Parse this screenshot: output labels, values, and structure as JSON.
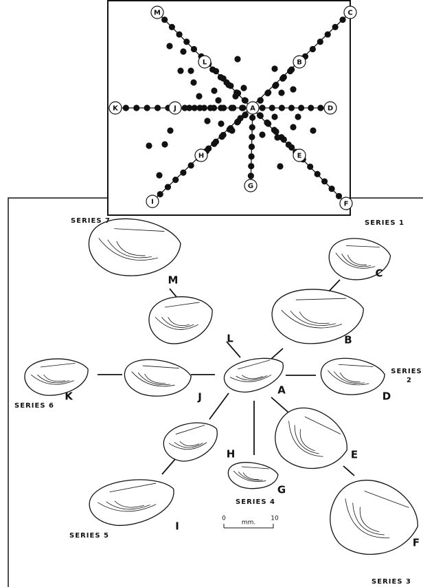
{
  "scatter": {
    "nodes": [
      "A",
      "B",
      "C",
      "D",
      "E",
      "F",
      "G",
      "H",
      "I",
      "J",
      "K",
      "L",
      "M"
    ]
  },
  "shells": [
    "A",
    "B",
    "C",
    "D",
    "E",
    "F",
    "G",
    "H",
    "I",
    "J",
    "K",
    "L",
    "M"
  ],
  "series": {
    "s1": "SERIES 1",
    "s2a": "SERIES",
    "s2b": "2",
    "s3": "SERIES 3",
    "s4": "SERIES 4",
    "s5": "SERIES 5",
    "s6": "SERIES 6",
    "s7": "SERIES 7"
  },
  "scale": {
    "start": "0",
    "unit": "mm.",
    "end": "10"
  }
}
